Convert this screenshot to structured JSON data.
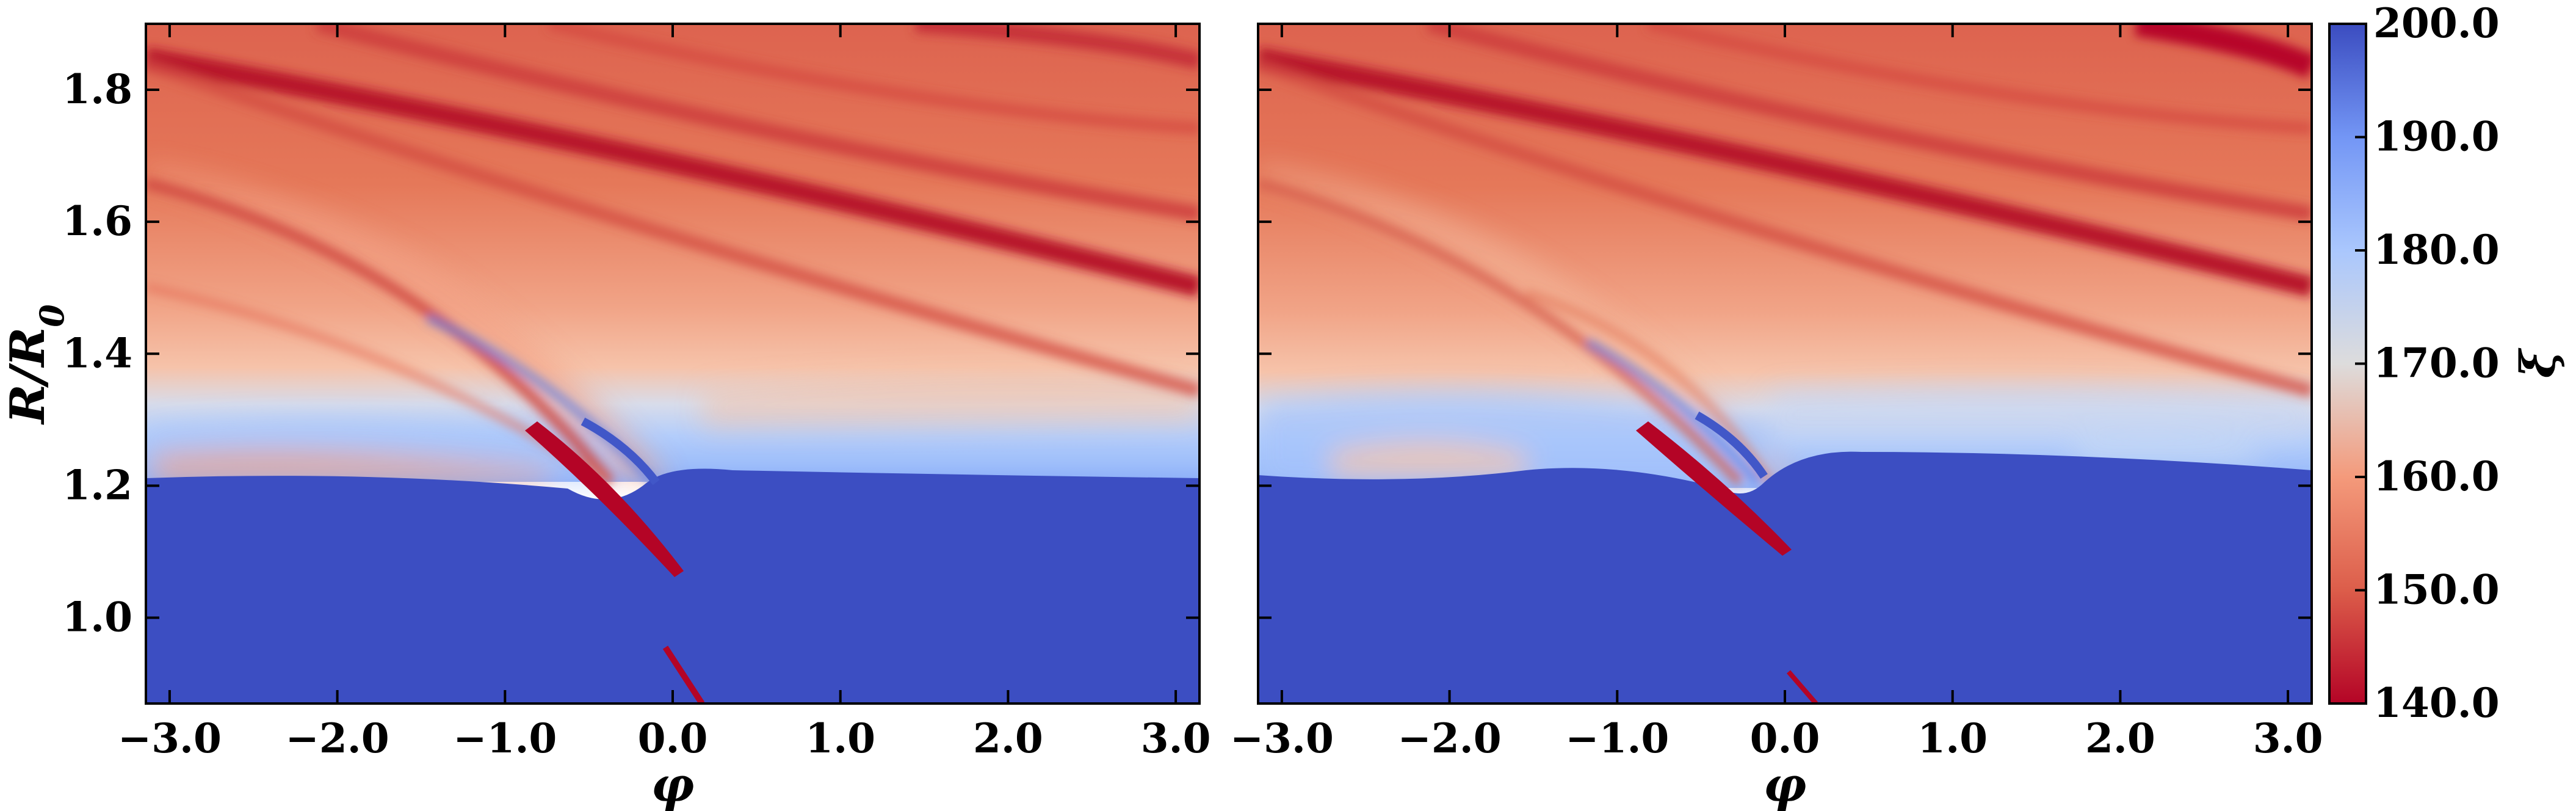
{
  "chart_data": [
    {
      "type": "heatmap",
      "panel": "left",
      "xlabel": "φ",
      "ylabel": "R/R",
      "ylabel_sub": "0",
      "xlim": [
        -3.14159,
        3.14159
      ],
      "ylim": [
        0.87,
        1.9
      ],
      "xticks": [
        -3.0,
        -2.0,
        -1.0,
        0.0,
        1.0,
        2.0,
        3.0
      ],
      "xtick_labels": [
        "−3.0",
        "−2.0",
        "−1.0",
        "0.0",
        "1.0",
        "2.0",
        "3.0"
      ],
      "yticks": [
        1.0,
        1.2,
        1.4,
        1.6,
        1.8
      ],
      "ytick_labels": [
        "1.0",
        "1.2",
        "1.4",
        "1.6",
        "1.8"
      ],
      "colormap": "coolwarm_r",
      "features": {
        "interface_R": 1.21,
        "spiral_arm_pitch": [
          1.85,
          1.7,
          1.55
        ]
      }
    },
    {
      "type": "heatmap",
      "panel": "right",
      "xlabel": "φ",
      "xlim": [
        -3.14159,
        3.14159
      ],
      "ylim": [
        0.87,
        1.9
      ],
      "xticks": [
        -3.0,
        -2.0,
        -1.0,
        0.0,
        1.0,
        2.0,
        3.0
      ],
      "xtick_labels": [
        "−3.0",
        "−2.0",
        "−1.0",
        "0.0",
        "1.0",
        "2.0",
        "3.0"
      ],
      "colormap": "coolwarm_r",
      "features": {
        "interface_R": 1.22,
        "spiral_arm_pitch": [
          1.85,
          1.7,
          1.55
        ]
      }
    }
  ],
  "colorbar": {
    "label": "ξ",
    "min": 140.0,
    "max": 200.0,
    "ticks": [
      140.0,
      150.0,
      160.0,
      170.0,
      180.0,
      190.0,
      200.0
    ],
    "tick_labels": [
      "140.0",
      "150.0",
      "160.0",
      "170.0",
      "180.0",
      "190.0",
      "200.0"
    ],
    "colors": {
      "low": "#b40426",
      "mid": "#dddddd",
      "high": "#3b4cc0"
    }
  }
}
